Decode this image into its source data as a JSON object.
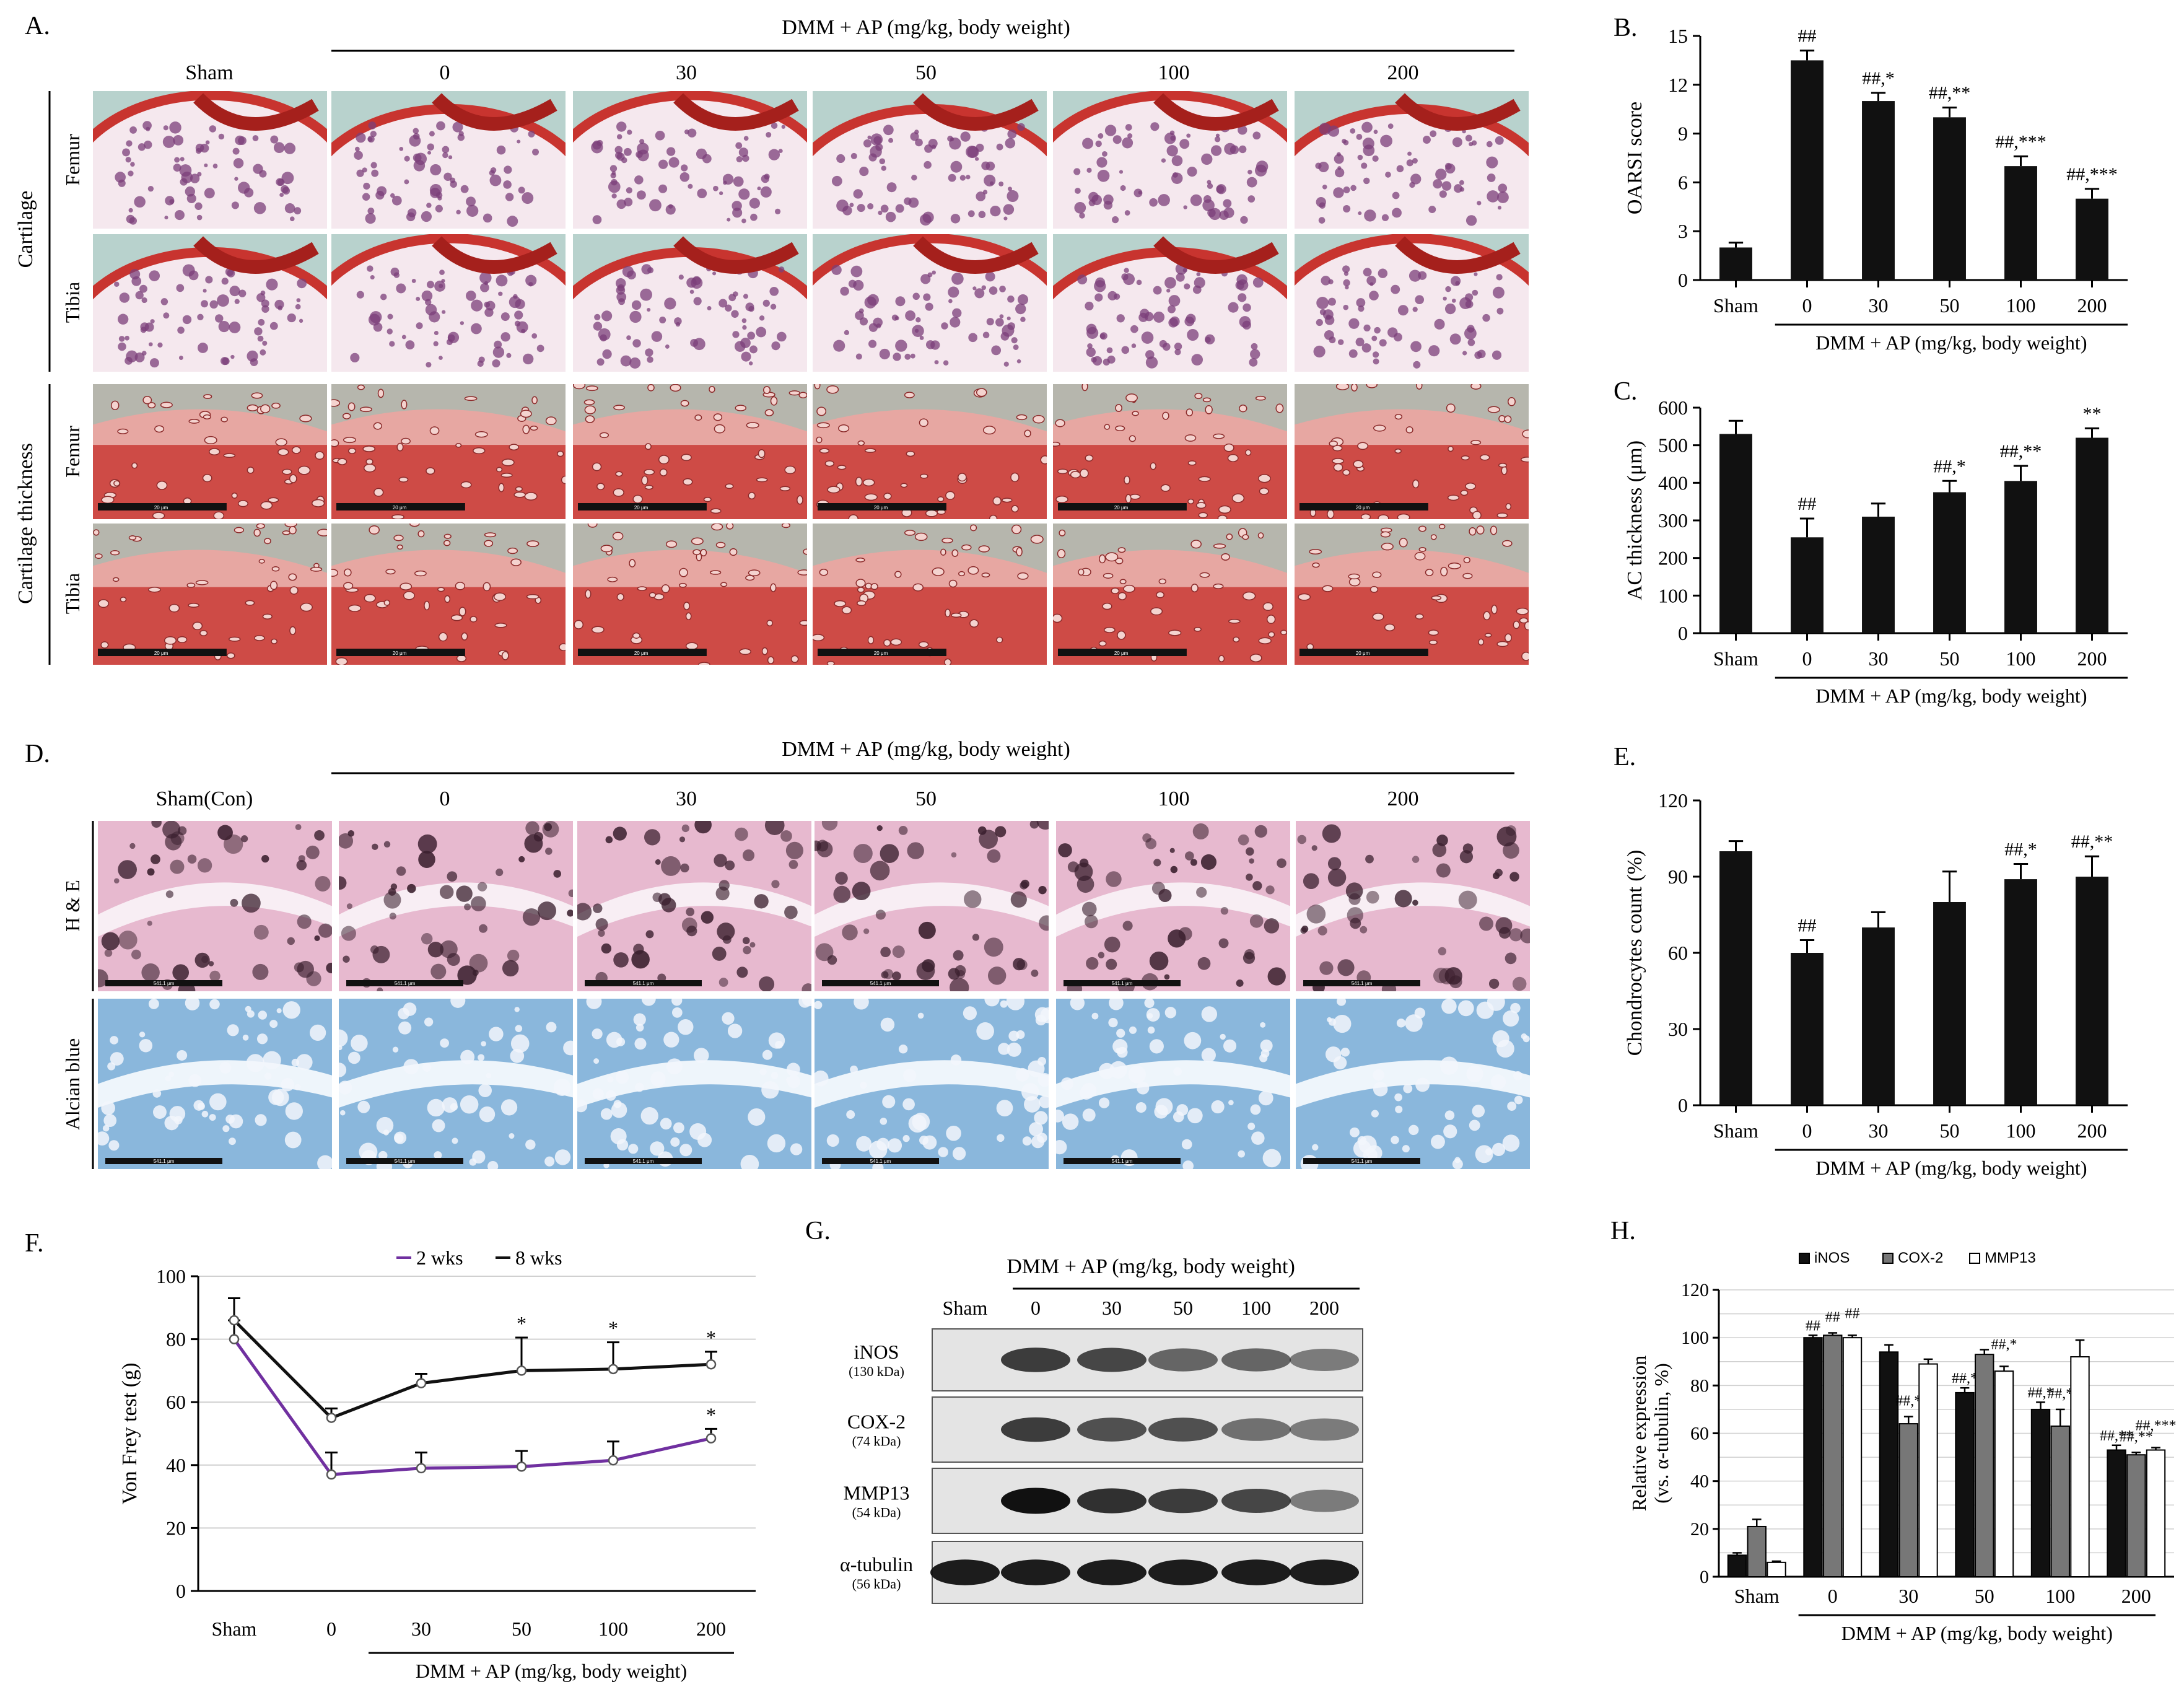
{
  "panel_labels": {
    "A": "A.",
    "B": "B.",
    "C": "C.",
    "D": "D.",
    "E": "E.",
    "F": "F.",
    "G": "G.",
    "H": "H."
  },
  "group_label": "DMM + AP (mg/kg, body weight)",
  "panel_a": {
    "columns": [
      "Sham",
      "0",
      "30",
      "50",
      "100",
      "200"
    ],
    "groups": [
      "Cartilage",
      "Cartilage thickness"
    ],
    "rows": [
      "Femur",
      "Tibia",
      "Femur",
      "Tibia"
    ],
    "scale_bar_text": "20 μm"
  },
  "panel_d": {
    "columns": [
      "Sham(Con)",
      "0",
      "30",
      "50",
      "100",
      "200"
    ],
    "rows": [
      "H & E",
      "Alcian blue"
    ],
    "scale_bar_text": "541.1 μm"
  },
  "panel_g": {
    "columns": [
      "Sham",
      "0",
      "30",
      "50",
      "100",
      "200"
    ],
    "bands": [
      {
        "name": "iNOS",
        "kda": "(130 kDa)"
      },
      {
        "name": "COX-2",
        "kda": "(74 kDa)"
      },
      {
        "name": "MMP13",
        "kda": "(54 kDa)"
      },
      {
        "name": "α-tubulin",
        "kda": "(56 kDa)"
      }
    ]
  },
  "colors": {
    "bar": "#111111",
    "series_2wks": "#7030a0",
    "series_8wks": "#111111",
    "safranin": "#c8342f",
    "fast_green": "#86c6b8",
    "he": "#c96b9a",
    "alcian": "#4a8ec6"
  },
  "chart_data": [
    {
      "id": "B",
      "type": "bar",
      "categories": [
        "Sham",
        "0",
        "30",
        "50",
        "100",
        "200"
      ],
      "values": [
        2,
        13.5,
        11,
        10,
        7,
        5
      ],
      "errors": [
        0.3,
        0.6,
        0.5,
        0.6,
        0.6,
        0.6
      ],
      "annotations": [
        "",
        "##",
        "##,*",
        "##,**",
        "##,***",
        "##,***"
      ],
      "ylabel": "OARSI score",
      "ylim": [
        0,
        15
      ],
      "yticks": [
        0,
        3,
        6,
        9,
        12,
        15
      ],
      "xgroup_label": "DMM + AP (mg/kg, body weight)"
    },
    {
      "id": "C",
      "type": "bar",
      "categories": [
        "Sham",
        "0",
        "30",
        "50",
        "100",
        "200"
      ],
      "values": [
        530,
        255,
        310,
        375,
        405,
        520
      ],
      "errors": [
        35,
        50,
        35,
        30,
        40,
        25
      ],
      "annotations": [
        "",
        "##",
        "",
        "##,*",
        "##,**",
        "**"
      ],
      "ylabel": "AC thickness (μm)",
      "ylim": [
        0,
        600
      ],
      "yticks": [
        0,
        100,
        200,
        300,
        400,
        500,
        600
      ],
      "xgroup_label": "DMM + AP (mg/kg, body weight)"
    },
    {
      "id": "E",
      "type": "bar",
      "categories": [
        "Sham",
        "0",
        "30",
        "50",
        "100",
        "200"
      ],
      "values": [
        100,
        60,
        70,
        80,
        89,
        90
      ],
      "errors": [
        4,
        5,
        6,
        12,
        6,
        8
      ],
      "annotations": [
        "",
        "##",
        "",
        "",
        "##,*",
        "##,**"
      ],
      "ylabel": "Chondrocytes count (%)",
      "ylim": [
        0,
        120
      ],
      "yticks": [
        0,
        30,
        60,
        90,
        120
      ],
      "xgroup_label": "DMM + AP (mg/kg, body weight)"
    },
    {
      "id": "F",
      "type": "line",
      "categories": [
        "Sham",
        "0",
        "30",
        "50",
        "100",
        "200"
      ],
      "series": [
        {
          "name": "2 wks",
          "values": [
            80,
            37,
            39,
            39.5,
            41.5,
            48.5
          ],
          "errors": [
            6,
            7,
            5,
            5,
            6,
            3
          ],
          "annotations": [
            "",
            "",
            "",
            "",
            "",
            "*"
          ]
        },
        {
          "name": "8 wks",
          "values": [
            86,
            55,
            66,
            70,
            70.5,
            72
          ],
          "errors": [
            7,
            3,
            3,
            10.5,
            8.5,
            4
          ],
          "annotations": [
            "",
            "",
            "",
            "*",
            "*",
            "*"
          ]
        }
      ],
      "ylabel": "Von Frey test (g)",
      "ylim": [
        0,
        100
      ],
      "yticks": [
        0,
        20,
        40,
        60,
        80,
        100
      ],
      "grid": true,
      "xgroup_label": "DMM + AP (mg/kg, body weight)"
    },
    {
      "id": "H",
      "type": "bar",
      "categories": [
        "Sham",
        "0",
        "30",
        "50",
        "100",
        "200"
      ],
      "series": [
        {
          "name": "iNOS",
          "values": [
            9,
            100,
            94,
            77,
            70,
            53
          ],
          "errors": [
            1,
            1,
            3,
            2,
            3,
            2
          ],
          "annotations": [
            "",
            "##",
            "",
            "##,*",
            "##,*",
            "##,**"
          ]
        },
        {
          "name": "COX-2",
          "values": [
            21,
            101,
            64,
            93,
            63,
            51
          ],
          "errors": [
            3,
            1,
            3,
            2,
            7,
            1
          ],
          "annotations": [
            "",
            "##",
            "##,*",
            "",
            "##,*",
            "##,**"
          ]
        },
        {
          "name": "MMP13",
          "values": [
            6,
            100,
            89,
            86,
            92,
            53
          ],
          "errors": [
            0.5,
            1,
            2,
            2,
            7,
            1
          ],
          "annotations": [
            "",
            "##",
            "",
            "##,*",
            "",
            "##,***"
          ]
        }
      ],
      "ylabel": "Relative expression",
      "ylabel2": "(vs. α-tubulin, %)",
      "ylim": [
        0,
        120
      ],
      "yticks": [
        0,
        10,
        20,
        30,
        40,
        50,
        60,
        70,
        80,
        90,
        100,
        110,
        120
      ],
      "grid": true,
      "legend_position": "top",
      "xgroup_label": "DMM + AP (mg/kg, body weight)"
    }
  ]
}
